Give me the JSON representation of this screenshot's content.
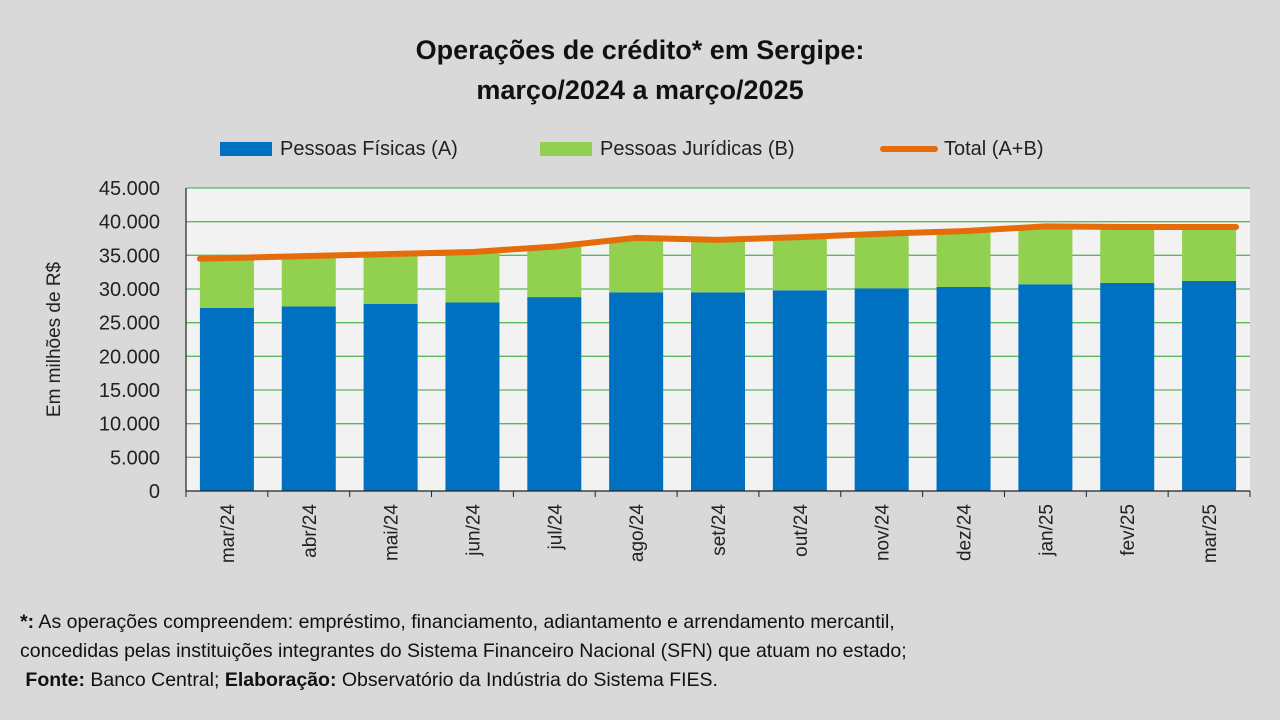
{
  "title": {
    "line1": "Operações de crédito* em Sergipe:",
    "line2": "março/2024 a março/2025"
  },
  "colors": {
    "pessoas_fisicas": "#0070c0",
    "pessoas_juridicas": "#92d050",
    "total": "#e46c0a",
    "grid": "#5cb85c",
    "plot_bg": "#f2f2f2"
  },
  "chart_data": {
    "type": "bar",
    "stacked": true,
    "ylabel": "Em milhões de R$",
    "ylim": [
      0,
      45000
    ],
    "yticks": [
      0,
      5000,
      10000,
      15000,
      20000,
      25000,
      30000,
      35000,
      40000,
      45000
    ],
    "ytick_labels": [
      "0",
      "5.000",
      "10.000",
      "15.000",
      "20.000",
      "25.000",
      "30.000",
      "35.000",
      "40.000",
      "45.000"
    ],
    "grid": true,
    "legend_position": "top",
    "categories": [
      "mar/24",
      "abr/24",
      "mai/24",
      "jun/24",
      "jul/24",
      "ago/24",
      "set/24",
      "out/24",
      "nov/24",
      "dez/24",
      "jan/25",
      "fev/25",
      "mar/25"
    ],
    "series": [
      {
        "name": "Pessoas Físicas (A)",
        "type": "bar",
        "values": [
          27200,
          27400,
          27800,
          28000,
          28800,
          29500,
          29500,
          29800,
          30100,
          30300,
          30700,
          30900,
          31200
        ]
      },
      {
        "name": "Pessoas Jurídicas (B)",
        "type": "bar",
        "values": [
          7300,
          7500,
          7400,
          7500,
          7500,
          8100,
          7800,
          7900,
          8100,
          8300,
          8600,
          8300,
          8000
        ]
      },
      {
        "name": "Total (A+B)",
        "type": "line",
        "values": [
          34500,
          34900,
          35200,
          35500,
          36300,
          37600,
          37300,
          37700,
          38200,
          38600,
          39300,
          39200,
          39200
        ]
      }
    ]
  },
  "footnote": {
    "marker": "*:",
    "text1": " As operações compreendem: empréstimo, financiamento, adiantamento e arrendamento mercantil,",
    "text2": "concedidas pelas instituições integrantes do Sistema Financeiro Nacional (SFN) que atuam no estado;",
    "source_label": "Fonte:",
    "source_text": " Banco Central; ",
    "elab_label": "Elaboração:",
    "elab_text": " Observatório da Indústria do Sistema FIES."
  }
}
